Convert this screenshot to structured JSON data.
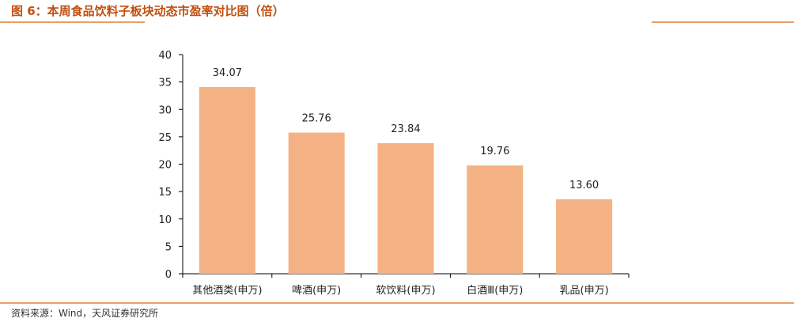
{
  "figure": {
    "title": "图 6：本周食品饮料子板块动态市盈率对比图（倍）",
    "source": "资料来源：Wind，天风证券研究所"
  },
  "colors": {
    "bar": "#F4B183",
    "accent": "#C24F10",
    "rule": "#E9A06B",
    "axis": "#000000"
  },
  "chart_data": {
    "type": "bar",
    "title": "",
    "xlabel": "",
    "ylabel": "",
    "categories": [
      "其他酒类(申万)",
      "啤酒(申万)",
      "软饮料(申万)",
      "白酒Ⅲ(申万)",
      "乳品(申万)"
    ],
    "values": [
      34.07,
      25.76,
      23.84,
      19.76,
      13.6
    ],
    "data_labels": [
      "34.07",
      "25.76",
      "23.84",
      "19.76",
      "13.60"
    ],
    "ylim": [
      0,
      40
    ],
    "yticks": [
      "0",
      "5",
      "10",
      "15",
      "20",
      "25",
      "30",
      "35",
      "40"
    ],
    "grid": false,
    "legend": "none"
  }
}
